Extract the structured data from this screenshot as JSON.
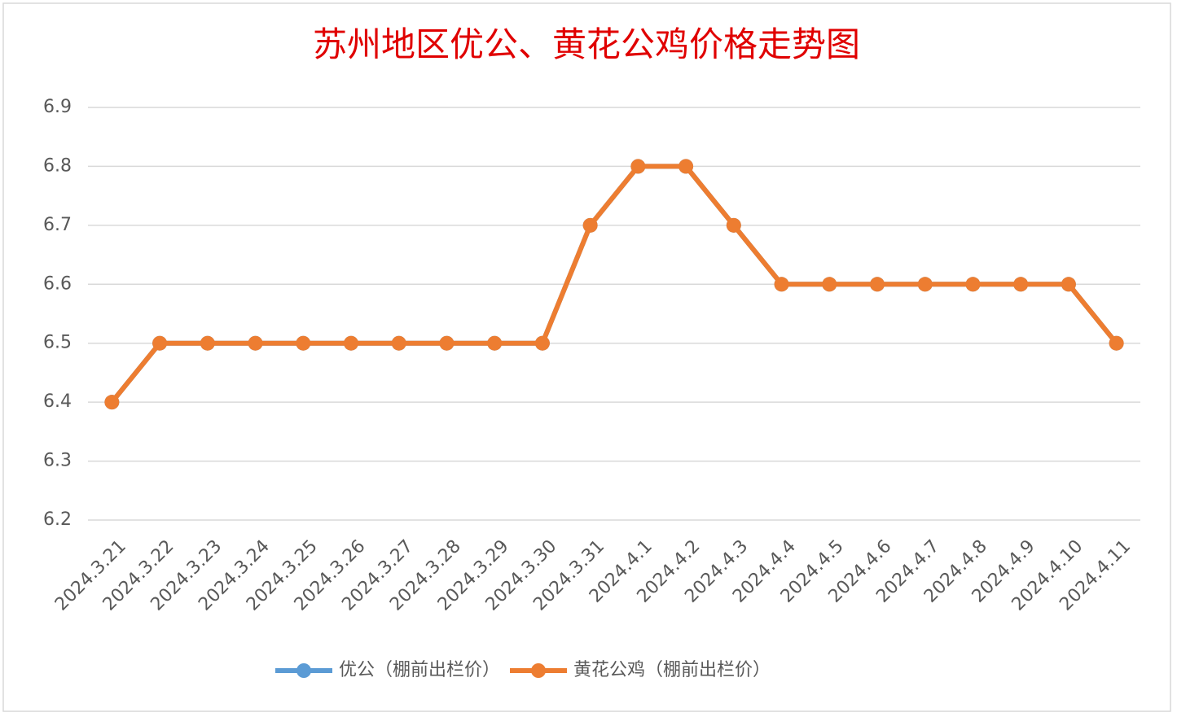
{
  "chart_data": {
    "type": "line",
    "title": "苏州地区优公、黄花公鸡价格走势图",
    "categories": [
      "2024.3.21",
      "2024.3.22",
      "2024.3.23",
      "2024.3.24",
      "2024.3.25",
      "2024.3.26",
      "2024.3.27",
      "2024.3.28",
      "2024.3.29",
      "2024.3.30",
      "2024.3.31",
      "2024.4.1",
      "2024.4.2",
      "2024.4.3",
      "2024.4.4",
      "2024.4.5",
      "2024.4.6",
      "2024.4.7",
      "2024.4.8",
      "2024.4.9",
      "2024.4.10",
      "2024.4.11"
    ],
    "series": [
      {
        "name": "优公（棚前出栏价）",
        "color": "#5b9bd5",
        "values": [
          6.4,
          6.5,
          6.5,
          6.5,
          6.5,
          6.5,
          6.5,
          6.5,
          6.5,
          6.5,
          6.7,
          6.8,
          6.8,
          6.7,
          6.6,
          6.6,
          6.6,
          6.6,
          6.6,
          6.6,
          6.6,
          6.5
        ]
      },
      {
        "name": "黄花公鸡（棚前出栏价）",
        "color": "#ed7d31",
        "values": [
          6.4,
          6.5,
          6.5,
          6.5,
          6.5,
          6.5,
          6.5,
          6.5,
          6.5,
          6.5,
          6.7,
          6.8,
          6.8,
          6.7,
          6.6,
          6.6,
          6.6,
          6.6,
          6.6,
          6.6,
          6.6,
          6.5
        ]
      }
    ],
    "ylim": [
      6.2,
      6.9
    ],
    "yticks": [
      6.2,
      6.3,
      6.4,
      6.5,
      6.6,
      6.7,
      6.8,
      6.9
    ],
    "grid": true,
    "legend": "bottom"
  }
}
